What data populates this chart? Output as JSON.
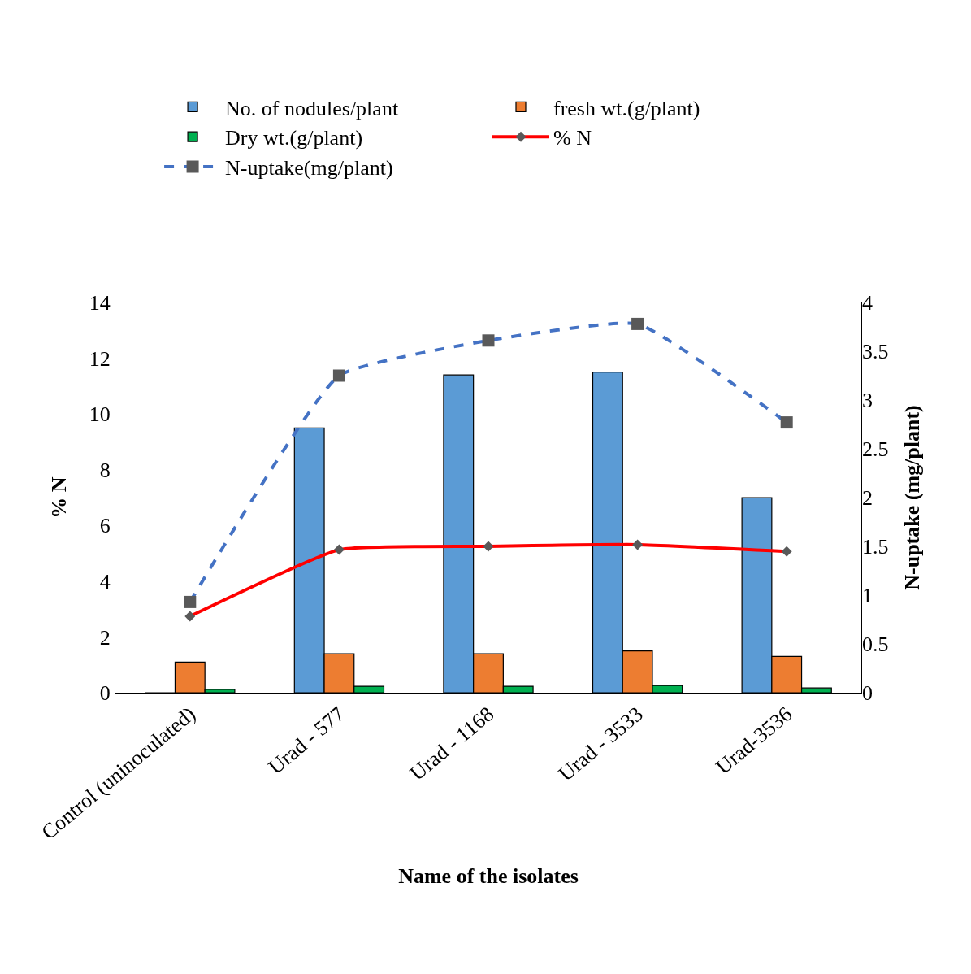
{
  "chart_data": {
    "type": "bar",
    "xlabel": "Name of the isolates",
    "ylabel": "% N",
    "y2label": "N-uptake (mg/plant)",
    "categories": [
      "Control (uninoculated)",
      "Urad - 577",
      "Urad - 1168",
      "Urad - 3533",
      "Urad-3536"
    ],
    "series": [
      {
        "name": "No. of nodules/plant",
        "color": "#5b9bd5",
        "values": [
          0,
          9.5,
          11.4,
          11.5,
          7.0
        ]
      },
      {
        "name": "fresh wt.(g/plant)",
        "color": "#ed7d31",
        "values": [
          1.1,
          1.4,
          1.4,
          1.5,
          1.3
        ]
      },
      {
        "name": "Dry wt.(g/plant)",
        "color": "#00b050",
        "values": [
          0.12,
          0.23,
          0.23,
          0.26,
          0.17
        ]
      },
      {
        "name": "% N",
        "type": "line",
        "color": "#ff0000",
        "marker": "diamond",
        "line_style": "solid",
        "values": [
          2.74,
          5.13,
          5.25,
          5.31,
          5.07
        ]
      },
      {
        "name": "N-uptake(mg/plant)",
        "type": "line",
        "axis": "y2",
        "color": "#4472c4",
        "marker": "square",
        "line_style": "dashed",
        "values": [
          0.93,
          3.25,
          3.61,
          3.78,
          2.77
        ]
      }
    ],
    "ylim": [
      0,
      14
    ],
    "yticks": [
      0,
      2,
      4,
      6,
      8,
      10,
      12,
      14
    ],
    "y2lim": [
      0,
      4
    ],
    "y2ticks": [
      0,
      0.5,
      1,
      1.5,
      2,
      2.5,
      3,
      3.5,
      4
    ],
    "grid": false,
    "legend": "top"
  }
}
